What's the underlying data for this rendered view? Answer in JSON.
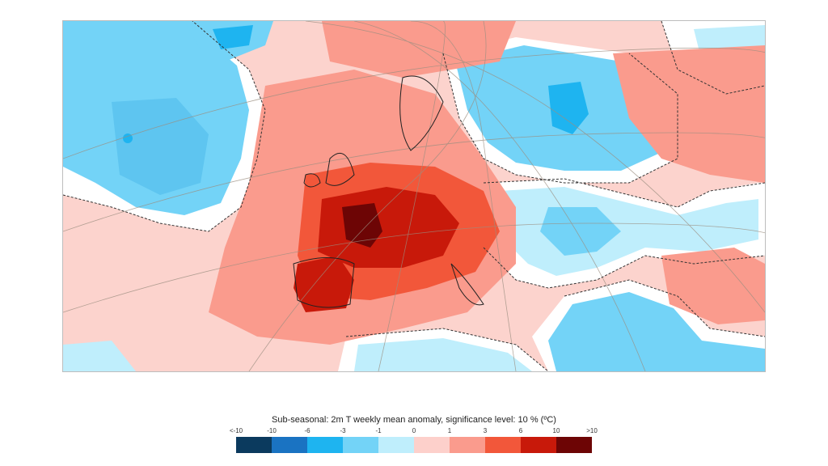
{
  "map": {
    "caption": "Sub-seasonal: 2m T weekly mean anomaly, significance level: 10 % (ºC)"
  },
  "legend": {
    "ticks": [
      "<-10",
      "-10",
      "-6",
      "-3",
      "-1",
      "0",
      "1",
      "3",
      "6",
      "10",
      ">10"
    ],
    "colors": [
      "#0b3a5e",
      "#1a73c2",
      "#1eb4f0",
      "#73d3f7",
      "#bfeefc",
      "#fdd0cb",
      "#fa9b8d",
      "#f2573a",
      "#c8190a",
      "#6d0505"
    ]
  }
}
